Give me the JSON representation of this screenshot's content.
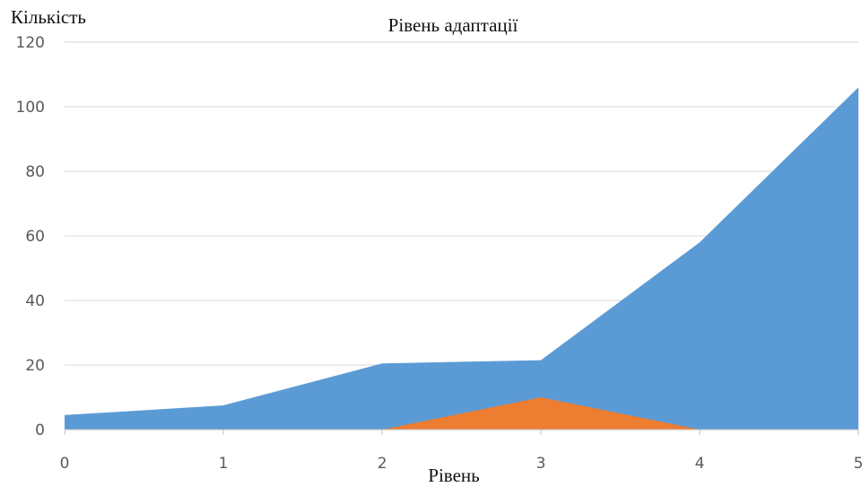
{
  "chart_data": {
    "type": "area",
    "title": "Рівень адаптації",
    "xlabel": "Рівень",
    "ylabel": "Кількість",
    "x": [
      0,
      1,
      2,
      3,
      4,
      5
    ],
    "xlim": [
      0,
      5
    ],
    "ylim": [
      0,
      120
    ],
    "yticks": [
      0,
      20,
      40,
      60,
      80,
      100,
      120
    ],
    "grid": true,
    "legend": "none",
    "series": [
      {
        "color": "#5b9bd5",
        "points": [
          [
            0,
            4.5
          ],
          [
            1,
            7.5
          ],
          [
            2,
            20.5
          ],
          [
            3,
            21.5
          ],
          [
            4,
            58
          ],
          [
            5,
            106
          ]
        ]
      },
      {
        "color": "#ed7d31",
        "points": [
          [
            2,
            0
          ],
          [
            3,
            10
          ],
          [
            4,
            0
          ]
        ]
      }
    ]
  }
}
